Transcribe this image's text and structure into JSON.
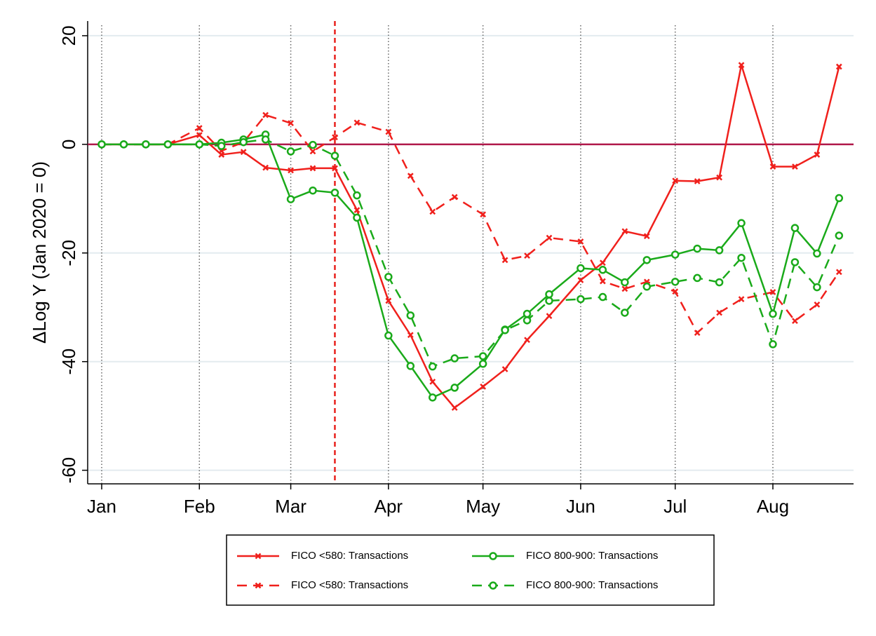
{
  "chart_data": {
    "type": "line",
    "y_label": "ΔLog Y (Jan 2020 = 0)",
    "x": [
      0,
      7,
      14,
      21,
      31,
      38,
      45,
      52,
      60,
      67,
      74,
      81,
      91,
      98,
      105,
      112,
      121,
      128,
      135,
      142,
      152,
      159,
      166,
      173,
      182,
      189,
      196,
      203,
      213,
      220,
      227,
      234
    ],
    "xlim": [
      -4.45,
      238.6
    ],
    "xticks": [
      {
        "value": 0,
        "label": "Jan"
      },
      {
        "value": 31,
        "label": "Feb"
      },
      {
        "value": 60,
        "label": "Mar"
      },
      {
        "value": 91,
        "label": "Apr"
      },
      {
        "value": 121,
        "label": "May"
      },
      {
        "value": 152,
        "label": "Jun"
      },
      {
        "value": 182,
        "label": "Jul"
      },
      {
        "value": 213,
        "label": "Aug"
      }
    ],
    "ylim": [
      -62.5,
      22.7
    ],
    "yticks": [
      -60,
      -40,
      -20,
      0,
      20
    ],
    "grid": true,
    "hline": 0,
    "hline_color": "#b0184a",
    "vline": 74,
    "vline_color": "#e8201c",
    "series": [
      {
        "name": "FICO <580: Transactions",
        "color": "#f0201c",
        "dash": false,
        "marker": "x",
        "values": [
          0,
          0,
          0,
          0,
          1.7,
          -1.9,
          -1.4,
          -4.3,
          -4.8,
          -4.4,
          -4.4,
          -12.1,
          -28.8,
          -35.1,
          -43.7,
          -48.5,
          -44.6,
          -41.4,
          -36,
          -31.6,
          -25,
          -21.8,
          -16,
          -16.9,
          -6.7,
          -6.8,
          -6.1,
          14.6,
          -4.1,
          -4.1,
          -1.9,
          14.3
        ]
      },
      {
        "name": "FICO <580: Transactions",
        "color": "#f0201c",
        "dash": true,
        "marker": "x",
        "values": [
          0,
          0,
          0,
          0,
          3,
          -1.2,
          0.4,
          5.4,
          3.9,
          -1.3,
          1.3,
          4,
          2.3,
          -5.8,
          -12.4,
          -9.7,
          -12.9,
          -21.3,
          -20.5,
          -17.2,
          -17.9,
          -25.2,
          -26.6,
          -25.3,
          -27.1,
          -34.7,
          -31,
          -28.5,
          -27.2,
          -32.5,
          -29.5,
          -23.5
        ]
      },
      {
        "name": "FICO 800-900: Transactions",
        "color": "#1aaa1a",
        "dash": false,
        "marker": "circle",
        "values": [
          0,
          0,
          0,
          0,
          0,
          0.3,
          0.9,
          1.8,
          -10.1,
          -8.5,
          -8.9,
          -13.5,
          -35.2,
          -40.8,
          -46.6,
          -44.8,
          -40.4,
          -34.1,
          -31.2,
          -27.6,
          -22.8,
          -23.1,
          -25.4,
          -21.3,
          -20.3,
          -19.2,
          -19.5,
          -14.5,
          -31.2,
          -15.4,
          -20.1,
          -9.9
        ]
      },
      {
        "name": "FICO 800-900: Transactions",
        "color": "#1aaa1a",
        "dash": true,
        "marker": "circle",
        "values": [
          0,
          0,
          0,
          0,
          0,
          -0.3,
          0.4,
          0.9,
          -1.3,
          -0.1,
          -2.1,
          -9.4,
          -24.4,
          -31.5,
          -40.9,
          -39.4,
          -39,
          -34.2,
          -32.4,
          -28.8,
          -28.5,
          -28.1,
          -31,
          -26.2,
          -25.3,
          -24.6,
          -25.4,
          -20.9,
          -36.8,
          -21.7,
          -26.3,
          -16.8
        ]
      }
    ]
  }
}
